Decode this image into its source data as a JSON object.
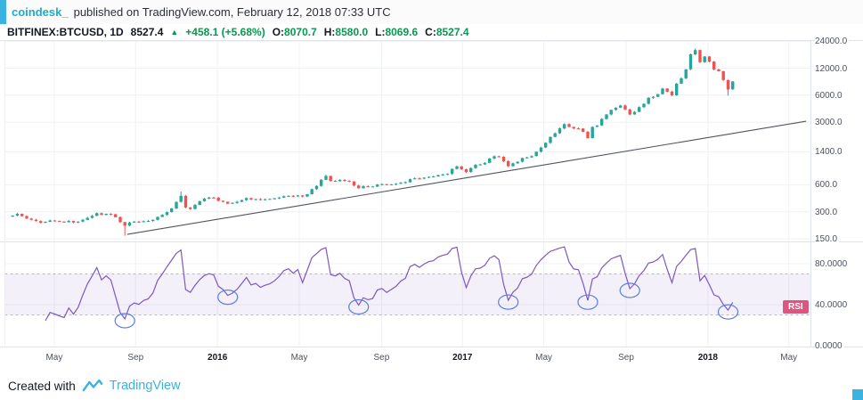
{
  "header": {
    "author": "coindesk_",
    "published": "published on TradingView.com, February 12, 2018 07:33 UTC"
  },
  "symbol_bar": {
    "symbol": "BITFINEX:BTCUSD, 1D",
    "last_price": "8527.4",
    "change_arrow": "▲",
    "change": "+458.1 (+5.68%)",
    "o_label": "O:",
    "o": "8070.7",
    "h_label": "H:",
    "h": "8580.0",
    "l_label": "L:",
    "l": "8069.6",
    "c_label": "C:",
    "c": "8527.4"
  },
  "footer": {
    "created_with": "Created with",
    "brand": "TradingView"
  },
  "colors": {
    "cyan": "#3ab3e0",
    "teal": "#1fadc4",
    "green": "#089950",
    "candle_up": "#26a69a",
    "candle_down": "#ef5350",
    "purple": "#7e57c2",
    "pink": "#e0557f",
    "trendline": "#50535e",
    "grid": "#eef1f6",
    "axis_text": "#4c525e"
  },
  "chart_data": {
    "type": "candlestick",
    "title": "BITFINEX:BTCUSD, 1D",
    "price_scale": "log",
    "indicators": [
      "RSI"
    ],
    "rsi_label": "RSI",
    "rsi_period": 7,
    "rsi_band": [
      30,
      70
    ],
    "price_axis": {
      "labels": [
        {
          "text": "24000.0",
          "price": 24000
        },
        {
          "text": "12000.0",
          "price": 12000
        },
        {
          "text": "6000.0",
          "price": 6000
        },
        {
          "text": "3000.0",
          "price": 3000
        },
        {
          "text": "1400.0",
          "price": 1400
        },
        {
          "text": "600.0",
          "price": 600
        },
        {
          "text": "300.0",
          "price": 300
        },
        {
          "text": "150.0",
          "price": 150
        }
      ]
    },
    "rsi_axis": {
      "labels": [
        {
          "text": "80.0000",
          "value": 80
        },
        {
          "text": "40.0000",
          "value": 40
        },
        {
          "text": "0.0000",
          "value": 0
        }
      ]
    },
    "x_axis": {
      "labels": [
        {
          "text": "May",
          "week": 8.9,
          "bold": false
        },
        {
          "text": "Sep",
          "week": 26.3,
          "bold": false
        },
        {
          "text": "2016",
          "week": 43.8,
          "bold": true
        },
        {
          "text": "May",
          "week": 61.3,
          "bold": false
        },
        {
          "text": "Sep",
          "week": 78.9,
          "bold": false
        },
        {
          "text": "2017",
          "week": 96.2,
          "bold": true
        },
        {
          "text": "May",
          "week": 113.6,
          "bold": false
        },
        {
          "text": "Sep",
          "week": 131.2,
          "bold": false
        },
        {
          "text": "2018",
          "week": 148.7,
          "bold": true
        },
        {
          "text": "May",
          "week": 166.0,
          "bold": false
        }
      ]
    },
    "first_open": 265,
    "closes": [
      272,
      285,
      268,
      252,
      244,
      236,
      226,
      232,
      240,
      237,
      233,
      230,
      237,
      228,
      233,
      244,
      257,
      270,
      289,
      277,
      285,
      281,
      262,
      230,
      210,
      228,
      233,
      230,
      235,
      237,
      244,
      263,
      277,
      297,
      327,
      387,
      452,
      335,
      322,
      358,
      393,
      420,
      433,
      430,
      398,
      388,
      370,
      377,
      388,
      405,
      427,
      412,
      416,
      409,
      414,
      417,
      423,
      432,
      447,
      452,
      448,
      456,
      444,
      471,
      537,
      583,
      683,
      753,
      663,
      658,
      679,
      662,
      654,
      588,
      548,
      578,
      569,
      573,
      604,
      609,
      598,
      607,
      616,
      632,
      641,
      693,
      708,
      703,
      721,
      736,
      742,
      768,
      783,
      794,
      902,
      963,
      893,
      831,
      921,
      1003,
      1012,
      1052,
      1178,
      1248,
      1232,
      1102,
      967,
      1041,
      1083,
      1192,
      1212,
      1252,
      1403,
      1563,
      1763,
      2053,
      2253,
      2553,
      2853,
      2653,
      2553,
      2543,
      2343,
      1993,
      2653,
      2753,
      3253,
      3653,
      4103,
      4353,
      4603,
      4153,
      3653,
      3903,
      4403,
      4803,
      5603,
      5753,
      6153,
      7103,
      6553,
      5953,
      8053,
      9253,
      11653,
      17103,
      19103,
      14003,
      16203,
      14203,
      11603,
      11103,
      8853,
      6953,
      8527
    ],
    "wick_overrides": [
      {
        "i": 24,
        "low": 162
      },
      {
        "i": 36,
        "high": 504
      },
      {
        "i": 67,
        "high": 781
      },
      {
        "i": 146,
        "high": 19891
      },
      {
        "i": 153,
        "low": 5922
      }
    ],
    "trendline": {
      "w1": 24.5,
      "p1": 168,
      "w2": 169.7,
      "p2": 3070
    },
    "rsi_circles": [
      24,
      46,
      75,
      106,
      124,
      133,
      153
    ]
  }
}
